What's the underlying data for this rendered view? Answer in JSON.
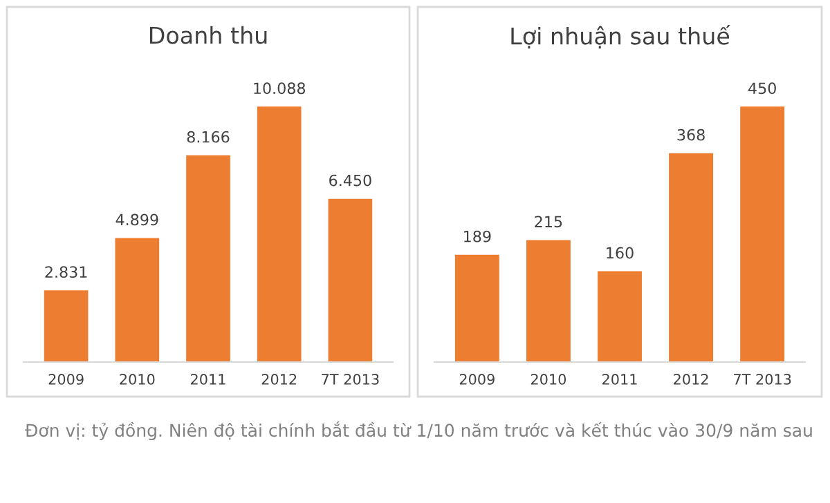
{
  "chart_data": [
    {
      "type": "bar",
      "title": "Doanh thu",
      "categories": [
        "2009",
        "2010",
        "2011",
        "2012",
        "7T 2013"
      ],
      "values": [
        2831,
        4899,
        8166,
        10088,
        6450
      ],
      "value_labels": [
        "2.831",
        "4.899",
        "8.166",
        "10.088",
        "6.450"
      ],
      "color": "#ed7d31",
      "grid": false,
      "legend": false,
      "annotations": [
        "Đơn vị: tỷ đồng. Niên độ tài chính bắt đầu từ 1/10 năm trước và kết thúc vào 30/9 năm sau"
      ]
    },
    {
      "type": "bar",
      "title": "Lợi nhuận sau thuế",
      "categories": [
        "2009",
        "2010",
        "2011",
        "2012",
        "7T 2013"
      ],
      "values": [
        189,
        215,
        160,
        368,
        450
      ],
      "value_labels": [
        "189",
        "215",
        "160",
        "368",
        "450"
      ],
      "color": "#ed7d31",
      "grid": false,
      "legend": false
    }
  ]
}
